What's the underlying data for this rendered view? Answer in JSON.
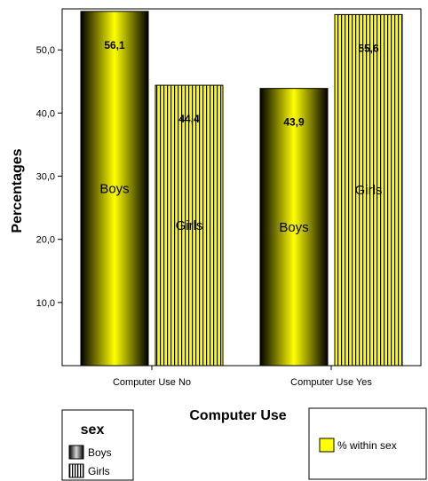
{
  "chart_data": {
    "type": "bar",
    "title": "",
    "xlabel": "Computer Use",
    "ylabel": "Percentages",
    "ylim": [
      0,
      56.5
    ],
    "yticks": [
      10,
      20,
      30,
      40,
      50
    ],
    "ytick_labels": [
      "10,0",
      "20,0",
      "30,0",
      "40,0",
      "50,0"
    ],
    "categories": [
      "Computer Use No",
      "Computer Use Yes"
    ],
    "series": [
      {
        "name": "Boys",
        "values": [
          56.1,
          43.9
        ],
        "value_labels": [
          "56,1",
          "43,9"
        ],
        "pattern": "gradient"
      },
      {
        "name": "Girls",
        "values": [
          44.4,
          55.6
        ],
        "value_labels": [
          "44,4",
          "55,6"
        ],
        "pattern": "vertical-stripes"
      }
    ],
    "legend": {
      "title": "sex",
      "entries": [
        "Boys",
        "Girls"
      ],
      "placement": "bottom-left"
    },
    "secondary_legend": {
      "entries": [
        "% within sex"
      ],
      "placement": "bottom-right"
    },
    "grid": false
  },
  "colors": {
    "boys_center": "#ffff00",
    "boys_edge": "#000000",
    "girls_fill": "#ffff00",
    "girls_stripe": "#000000"
  }
}
